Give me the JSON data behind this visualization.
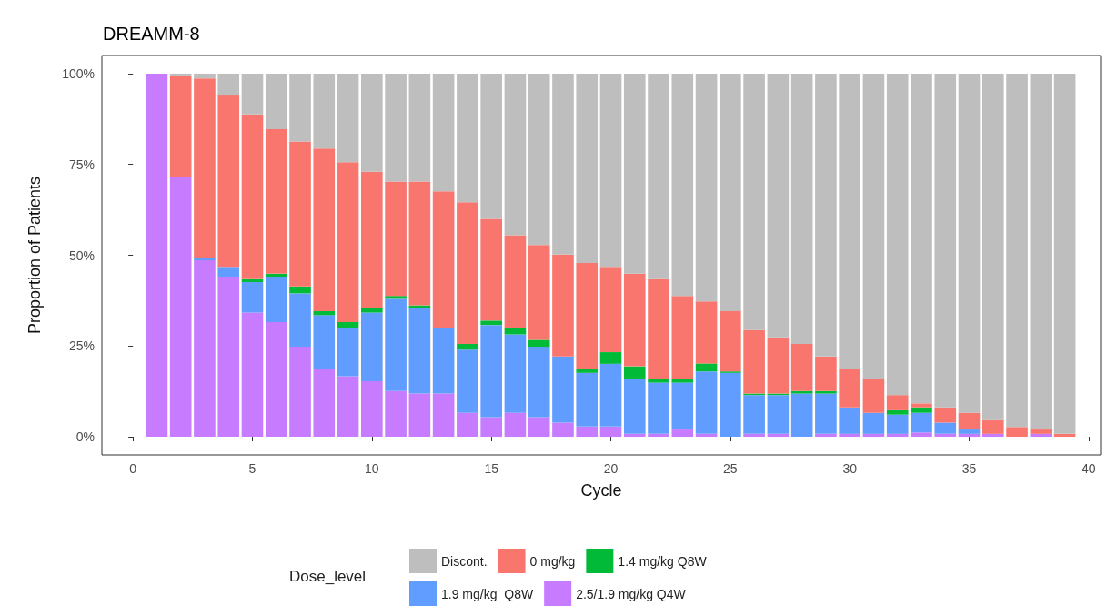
{
  "chart_data": {
    "type": "bar",
    "title": "DREAMM-8",
    "xlabel": "Cycle",
    "ylabel": "Proportion of Patients",
    "legend_title": "Dose_level",
    "stacked": true,
    "legend": "bottom",
    "grid": false,
    "x": [
      1,
      2,
      3,
      4,
      5,
      6,
      7,
      8,
      9,
      10,
      11,
      12,
      13,
      14,
      15,
      16,
      17,
      18,
      19,
      20,
      21,
      22,
      23,
      24,
      25,
      26,
      27,
      28,
      29,
      30,
      31,
      32,
      33,
      34,
      35,
      36,
      37,
      38,
      39
    ],
    "xlim": [
      -1.3,
      40.5
    ],
    "xticks": [
      0,
      5,
      10,
      15,
      20,
      25,
      30,
      35,
      40
    ],
    "ylim": [
      -5,
      105
    ],
    "yticks": [
      {
        "value": 0,
        "label": "0%"
      },
      {
        "value": 25,
        "label": "25%"
      },
      {
        "value": 50,
        "label": "50%"
      },
      {
        "value": 75,
        "label": "75%"
      },
      {
        "value": 100,
        "label": "100%"
      }
    ],
    "series": [
      {
        "name": "2.5/1.9 mg/kg Q4W",
        "color": "#c77cff",
        "values": [
          100,
          71.4,
          48.6,
          44.1,
          34.2,
          31.6,
          24.8,
          18.7,
          16.7,
          15.3,
          12.6,
          11.9,
          11.9,
          6.6,
          5.4,
          6.6,
          5.4,
          3.9,
          2.8,
          2.8,
          0.8,
          0.8,
          2.0,
          0.8,
          0,
          0.8,
          0.8,
          0,
          0.8,
          0.8,
          0.8,
          0.8,
          1.2,
          0.8,
          0.8,
          0.8,
          0,
          0.8,
          0
        ]
      },
      {
        "name": "1.9 mg/kg  Q8W",
        "color": "#619cff",
        "values": [
          0,
          0,
          0.8,
          2.7,
          8.4,
          12.5,
          14.7,
          14.8,
          13.3,
          18.9,
          25.4,
          23.5,
          18.2,
          17.4,
          25.4,
          21.6,
          19.4,
          18.2,
          14.8,
          17.3,
          15.2,
          14.1,
          12.9,
          17.2,
          17.6,
          10.7,
          10.7,
          11.9,
          11.1,
          7.3,
          5.8,
          5.3,
          5.4,
          3.1,
          1.2,
          0,
          0,
          0,
          0
        ]
      },
      {
        "name": "1.4 mg/kg Q8W",
        "color": "#00ba38",
        "values": [
          0,
          0,
          0,
          0,
          0.8,
          0.8,
          1.9,
          1.1,
          1.6,
          1.2,
          0.8,
          0.8,
          0,
          1.6,
          1.2,
          1.9,
          1.9,
          0,
          1.1,
          3.2,
          3.4,
          1.1,
          1.1,
          2.2,
          0.4,
          0.4,
          0.4,
          0.7,
          0.7,
          0,
          0,
          1.2,
          1.5,
          0,
          0,
          0,
          0,
          0,
          0
        ]
      },
      {
        "name": "0 mg/kg",
        "color": "#f8766d",
        "values": [
          0,
          28.1,
          49.3,
          47.4,
          45.4,
          39.8,
          39.9,
          44.8,
          44.0,
          37.6,
          31.5,
          34.1,
          37.5,
          39.0,
          28.0,
          25.4,
          26.1,
          28.1,
          29.2,
          23.5,
          25.5,
          27.4,
          22.8,
          17.1,
          16.6,
          17.5,
          15.5,
          13.0,
          9.5,
          10.6,
          9.4,
          4.2,
          1.1,
          4.2,
          4.6,
          3.8,
          2.7,
          1.2,
          0.8
        ]
      },
      {
        "name": "Discont.",
        "color": "#bebebe",
        "values": [
          0,
          0.5,
          1.3,
          5.8,
          11.2,
          15.3,
          18.7,
          20.6,
          24.4,
          27.0,
          29.7,
          29.7,
          32.4,
          35.4,
          40.0,
          44.5,
          47.2,
          49.8,
          52.1,
          53.2,
          55.1,
          56.6,
          61.2,
          62.7,
          65.4,
          70.6,
          72.6,
          74.4,
          77.9,
          81.3,
          84.0,
          88.5,
          90.8,
          91.9,
          93.4,
          95.4,
          97.3,
          98.0,
          99.2
        ]
      }
    ]
  }
}
